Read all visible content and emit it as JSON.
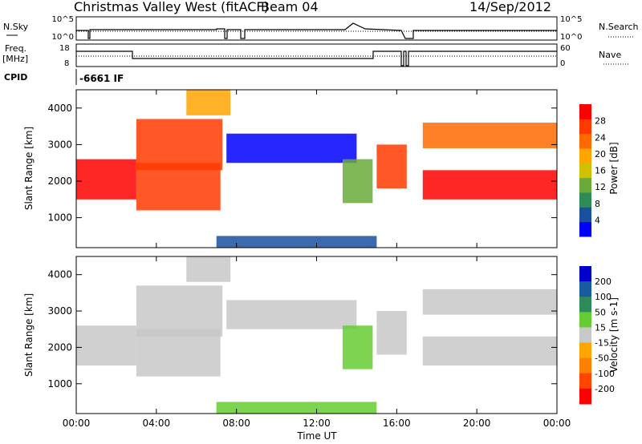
{
  "header": {
    "station": "Christmas Valley West (fitACF)",
    "beam": "Beam 04",
    "date": "14/Sep/2012"
  },
  "summary": {
    "nsky_label": "N.Sky",
    "nsearch_label": "N.Search",
    "freq_label_1": "Freq.",
    "freq_label_2": "[MHz]",
    "nave_label": "Nave",
    "cpid_label": "CPID",
    "cpid_value": "-6661 IF",
    "noise_ticks": [
      "10^5",
      "10^0"
    ],
    "noise_ticks_right": [
      "10^5",
      "10^0"
    ],
    "freq_ticks": [
      "18",
      "8"
    ],
    "nave_ticks": [
      "60",
      "0"
    ]
  },
  "colors": {
    "power_scale": [
      "#0000ff",
      "#1a50a0",
      "#2e8b57",
      "#6aaa3a",
      "#cfc000",
      "#ffa500",
      "#ff6a00",
      "#ff3a00",
      "#ff0000"
    ],
    "velocity_scale": [
      "#0000cc",
      "#1a5aa0",
      "#2e8b57",
      "#66cc33",
      "#c8c8c8",
      "#ffa500",
      "#ff7f00",
      "#ff4500",
      "#ff0000"
    ]
  },
  "chart_data": [
    {
      "type": "heatmap",
      "title": "Power",
      "xlabel": "",
      "ylabel": "Slant Range [km]",
      "xlim": [
        0,
        24
      ],
      "ylim": [
        180,
        4500
      ],
      "x_ticks": [
        "00:00",
        "04:00",
        "08:00",
        "12:00",
        "16:00",
        "20:00",
        "00:00"
      ],
      "y_ticks": [
        "1000",
        "2000",
        "3000",
        "4000"
      ],
      "colorbar_label": "Power [dB]",
      "colorbar_ticks": [
        "4",
        "8",
        "12",
        "16",
        "20",
        "24",
        "28"
      ],
      "bands": [
        {
          "t0": 0,
          "t1": 3,
          "r0": 1500,
          "r1": 2600,
          "level": 8
        },
        {
          "t0": 3,
          "t1": 7.2,
          "r0": 1200,
          "r1": 2500,
          "level": 7
        },
        {
          "t0": 3,
          "t1": 7.3,
          "r0": 2300,
          "r1": 3700,
          "level": 7
        },
        {
          "t0": 5.5,
          "t1": 7.7,
          "r0": 3800,
          "r1": 4500,
          "level": 5
        },
        {
          "t0": 7.5,
          "t1": 14,
          "r0": 2500,
          "r1": 3300,
          "level": 0
        },
        {
          "t0": 13.3,
          "t1": 14.8,
          "r0": 1400,
          "r1": 2600,
          "level": 3
        },
        {
          "t0": 15,
          "t1": 16.5,
          "r0": 1800,
          "r1": 3000,
          "level": 7
        },
        {
          "t0": 17.3,
          "t1": 24,
          "r0": 1500,
          "r1": 2300,
          "level": 8
        },
        {
          "t0": 17.3,
          "t1": 24,
          "r0": 2900,
          "r1": 3600,
          "level": 6
        },
        {
          "t0": 7,
          "t1": 15,
          "r0": 180,
          "r1": 500,
          "level": 1
        }
      ]
    },
    {
      "type": "heatmap",
      "title": "Velocity",
      "xlabel": "Time UT",
      "ylabel": "Slant Range [km]",
      "xlim": [
        0,
        24
      ],
      "ylim": [
        180,
        4500
      ],
      "x_ticks": [
        "00:00",
        "04:00",
        "08:00",
        "12:00",
        "16:00",
        "20:00",
        "00:00"
      ],
      "y_ticks": [
        "1000",
        "2000",
        "3000",
        "4000"
      ],
      "colorbar_label": "Velocity [m s-1]",
      "colorbar_ticks": [
        "200",
        "100",
        "50",
        "15",
        "-15",
        "-50",
        "-100",
        "-200"
      ],
      "bands": [
        {
          "t0": 0,
          "t1": 3,
          "r0": 1500,
          "r1": 2600,
          "level": 4
        },
        {
          "t0": 3,
          "t1": 7.2,
          "r0": 1200,
          "r1": 2500,
          "level": 4
        },
        {
          "t0": 3,
          "t1": 7.3,
          "r0": 2300,
          "r1": 3700,
          "level": 4
        },
        {
          "t0": 5.5,
          "t1": 7.7,
          "r0": 3800,
          "r1": 4500,
          "level": 4
        },
        {
          "t0": 7.5,
          "t1": 14,
          "r0": 2500,
          "r1": 3300,
          "level": 4
        },
        {
          "t0": 13.3,
          "t1": 14.8,
          "r0": 1400,
          "r1": 2600,
          "level": 3
        },
        {
          "t0": 15,
          "t1": 16.5,
          "r0": 1800,
          "r1": 3000,
          "level": 4
        },
        {
          "t0": 17.3,
          "t1": 24,
          "r0": 1500,
          "r1": 2300,
          "level": 4
        },
        {
          "t0": 17.3,
          "t1": 24,
          "r0": 2900,
          "r1": 3600,
          "level": 4
        },
        {
          "t0": 7,
          "t1": 15,
          "r0": 180,
          "r1": 500,
          "level": 3
        }
      ]
    }
  ]
}
